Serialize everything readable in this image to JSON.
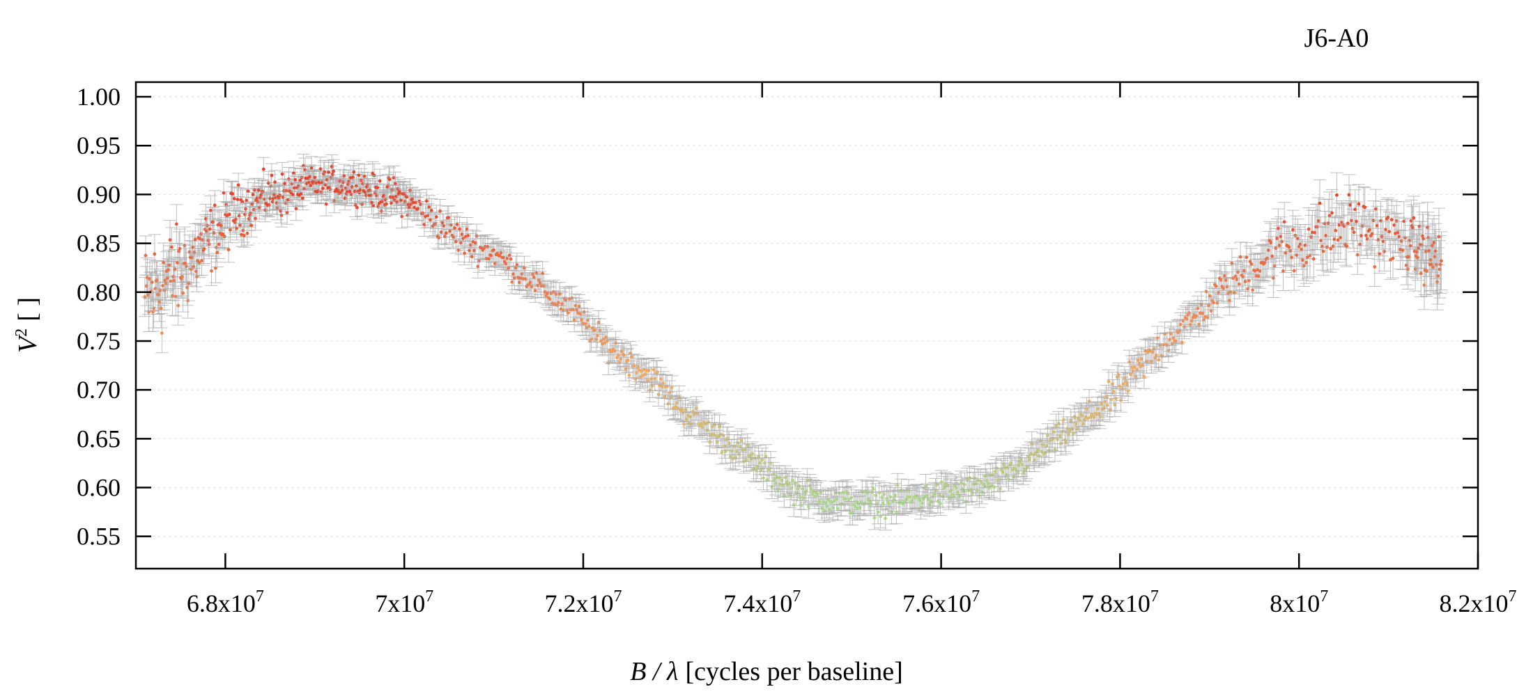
{
  "chart_data": {
    "type": "scatter",
    "title": "J6-A0",
    "xlabel": {
      "var": "B / λ",
      "unit": "[cycles per baseline]"
    },
    "ylabel": {
      "var": "V",
      "sup": "2",
      "unit": "[ ]"
    },
    "xlim": [
      67000000,
      82000000
    ],
    "ylim": [
      0.517,
      1.015
    ],
    "grid": true,
    "error_bars": true,
    "x_ticks": [
      {
        "value": 68000000,
        "mantissa": "6.8",
        "exp": "7"
      },
      {
        "value": 70000000,
        "mantissa": "7",
        "exp": "7"
      },
      {
        "value": 72000000,
        "mantissa": "7.2",
        "exp": "7"
      },
      {
        "value": 74000000,
        "mantissa": "7.4",
        "exp": "7"
      },
      {
        "value": 76000000,
        "mantissa": "7.6",
        "exp": "7"
      },
      {
        "value": 78000000,
        "mantissa": "7.8",
        "exp": "7"
      },
      {
        "value": 80000000,
        "mantissa": "8",
        "exp": "7"
      },
      {
        "value": 82000000,
        "mantissa": "8.2",
        "exp": "7"
      }
    ],
    "y_ticks": [
      "0.55",
      "0.60",
      "0.65",
      "0.70",
      "0.75",
      "0.80",
      "0.85",
      "0.90",
      "0.95",
      "1.00"
    ],
    "colors": {
      "high": "#e8432a",
      "mid": "#f5a860",
      "low": "#a8dc8a",
      "errorbar": "#a9a9a9",
      "grid": "#dddddd"
    },
    "color_scale": [
      {
        "v2": 0.58,
        "color": "#a8dc8a"
      },
      {
        "v2": 0.72,
        "color": "#f5a860"
      },
      {
        "v2": 0.9,
        "color": "#e8432a"
      }
    ],
    "series": [
      {
        "x": [
          67100000,
          67300000,
          67500000,
          67700000,
          67900000,
          68100000,
          68300000,
          68500000,
          68700000,
          68900000,
          69100000,
          69300000,
          69500000,
          69700000,
          69900000,
          70100000,
          70400000,
          70700000,
          71000000,
          71300000,
          71600000,
          71900000,
          72200000,
          72500000,
          72800000,
          73100000,
          73400000,
          73700000,
          74000000,
          74300000,
          74600000,
          74900000,
          75200000,
          75500000,
          75800000,
          76100000,
          76400000,
          76700000,
          77000000,
          77300000,
          77600000,
          77900000,
          78200000,
          78500000,
          78800000,
          79100000,
          79400000,
          79700000,
          80000000,
          80300000,
          80600000,
          80900000,
          81200000,
          81400000,
          81600000
        ],
        "y": [
          0.79,
          0.81,
          0.82,
          0.84,
          0.86,
          0.88,
          0.89,
          0.9,
          0.9,
          0.91,
          0.91,
          0.91,
          0.91,
          0.9,
          0.9,
          0.89,
          0.87,
          0.85,
          0.84,
          0.82,
          0.8,
          0.78,
          0.75,
          0.73,
          0.71,
          0.68,
          0.66,
          0.64,
          0.62,
          0.6,
          0.59,
          0.585,
          0.585,
          0.585,
          0.59,
          0.595,
          0.6,
          0.61,
          0.63,
          0.65,
          0.67,
          0.69,
          0.72,
          0.75,
          0.77,
          0.8,
          0.82,
          0.84,
          0.85,
          0.86,
          0.87,
          0.86,
          0.85,
          0.84,
          0.83
        ],
        "y_err": [
          0.02,
          0.02,
          0.02,
          0.015,
          0.015,
          0.012,
          0.012,
          0.012,
          0.012,
          0.012,
          0.012,
          0.012,
          0.012,
          0.012,
          0.012,
          0.012,
          0.012,
          0.012,
          0.012,
          0.012,
          0.012,
          0.012,
          0.012,
          0.012,
          0.012,
          0.012,
          0.012,
          0.012,
          0.012,
          0.012,
          0.012,
          0.012,
          0.012,
          0.012,
          0.012,
          0.012,
          0.012,
          0.012,
          0.012,
          0.012,
          0.012,
          0.012,
          0.012,
          0.012,
          0.012,
          0.015,
          0.015,
          0.02,
          0.02,
          0.025,
          0.02,
          0.02,
          0.02,
          0.025,
          0.03
        ],
        "point_density": 22,
        "scatter_amplitude": [
          0.05,
          0.05,
          0.04,
          0.035,
          0.03,
          0.025,
          0.02,
          0.02,
          0.02,
          0.015,
          0.015,
          0.015,
          0.015,
          0.015,
          0.015,
          0.015,
          0.015,
          0.015,
          0.012,
          0.012,
          0.012,
          0.012,
          0.012,
          0.012,
          0.012,
          0.012,
          0.012,
          0.012,
          0.012,
          0.012,
          0.012,
          0.012,
          0.012,
          0.012,
          0.012,
          0.012,
          0.012,
          0.012,
          0.012,
          0.012,
          0.012,
          0.015,
          0.015,
          0.015,
          0.015,
          0.015,
          0.02,
          0.025,
          0.03,
          0.03,
          0.03,
          0.025,
          0.025,
          0.025,
          0.03
        ]
      }
    ]
  }
}
